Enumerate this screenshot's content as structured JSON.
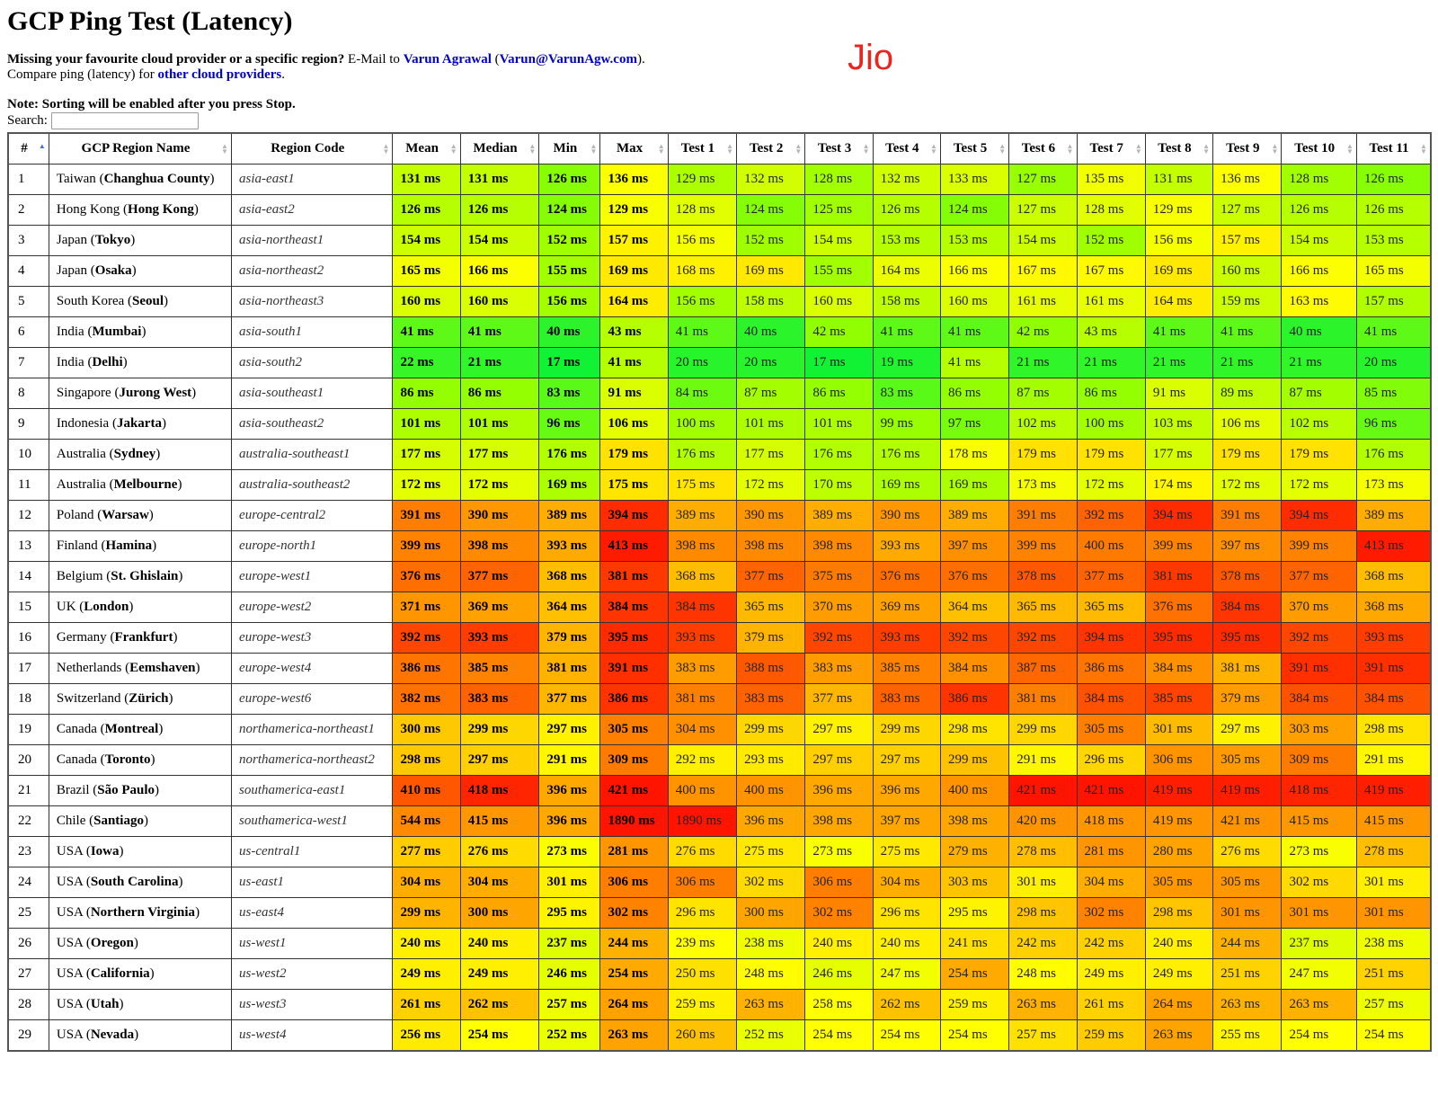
{
  "page": {
    "title": "GCP Ping Test (Latency)",
    "watermark": "Jio",
    "watermark_color": "#e8251f",
    "missing_question": "Missing your favourite cloud provider or a specific region?",
    "email_text": " E-Mail to ",
    "author_name": "Varun Agrawal",
    "open_paren": " (",
    "author_email": "Varun@VarunAgw.com",
    "close_paren": ").",
    "compare_prefix": "Compare ping (latency) for ",
    "compare_link": "other cloud providers",
    "compare_suffix": ".",
    "note": "Note: Sorting will be enabled after you press Stop.",
    "search_label": "Search:",
    "search_value": ""
  },
  "headers": [
    "#",
    "GCP Region Name",
    "Region Code",
    "Mean",
    "Median",
    "Min",
    "Max",
    "Test 1",
    "Test 2",
    "Test 3",
    "Test 4",
    "Test 5",
    "Test 6",
    "Test 7",
    "Test 8",
    "Test 9",
    "Test 10",
    "Test 11"
  ],
  "rows": [
    {
      "n": "1",
      "country": "Taiwan",
      "city": "Changhua County",
      "code": "asia-east1",
      "vals": [
        131,
        131,
        126,
        136,
        129,
        132,
        128,
        132,
        133,
        127,
        135,
        131,
        136,
        128,
        126
      ]
    },
    {
      "n": "2",
      "country": "Hong Kong",
      "city": "Hong Kong",
      "code": "asia-east2",
      "vals": [
        126,
        126,
        124,
        129,
        128,
        124,
        125,
        126,
        124,
        127,
        128,
        129,
        127,
        126,
        126
      ]
    },
    {
      "n": "3",
      "country": "Japan",
      "city": "Tokyo",
      "code": "asia-northeast1",
      "vals": [
        154,
        154,
        152,
        157,
        156,
        152,
        154,
        153,
        153,
        154,
        152,
        156,
        157,
        154,
        153
      ]
    },
    {
      "n": "4",
      "country": "Japan",
      "city": "Osaka",
      "code": "asia-northeast2",
      "vals": [
        165,
        166,
        155,
        169,
        168,
        169,
        155,
        164,
        166,
        167,
        167,
        169,
        160,
        166,
        165
      ]
    },
    {
      "n": "5",
      "country": "South Korea",
      "city": "Seoul",
      "code": "asia-northeast3",
      "vals": [
        160,
        160,
        156,
        164,
        156,
        158,
        160,
        158,
        160,
        161,
        161,
        164,
        159,
        163,
        157
      ]
    },
    {
      "n": "6",
      "country": "India",
      "city": "Mumbai",
      "code": "asia-south1",
      "vals": [
        41,
        41,
        40,
        43,
        41,
        40,
        42,
        41,
        41,
        42,
        43,
        41,
        41,
        40,
        41
      ]
    },
    {
      "n": "7",
      "country": "India",
      "city": "Delhi",
      "code": "asia-south2",
      "vals": [
        22,
        21,
        17,
        41,
        20,
        20,
        17,
        19,
        41,
        21,
        21,
        21,
        21,
        21,
        20
      ]
    },
    {
      "n": "8",
      "country": "Singapore",
      "city": "Jurong West",
      "code": "asia-southeast1",
      "vals": [
        86,
        86,
        83,
        91,
        84,
        87,
        86,
        83,
        86,
        87,
        86,
        91,
        89,
        87,
        85
      ]
    },
    {
      "n": "9",
      "country": "Indonesia",
      "city": "Jakarta",
      "code": "asia-southeast2",
      "vals": [
        101,
        101,
        96,
        106,
        100,
        101,
        101,
        99,
        97,
        102,
        100,
        103,
        106,
        102,
        96
      ]
    },
    {
      "n": "10",
      "country": "Australia",
      "city": "Sydney",
      "code": "australia-southeast1",
      "vals": [
        177,
        177,
        176,
        179,
        176,
        177,
        176,
        176,
        178,
        179,
        179,
        177,
        179,
        179,
        176
      ]
    },
    {
      "n": "11",
      "country": "Australia",
      "city": "Melbourne",
      "code": "australia-southeast2",
      "vals": [
        172,
        172,
        169,
        175,
        175,
        172,
        170,
        169,
        169,
        173,
        172,
        174,
        172,
        172,
        173
      ]
    },
    {
      "n": "12",
      "country": "Poland",
      "city": "Warsaw",
      "code": "europe-central2",
      "vals": [
        391,
        390,
        389,
        394,
        389,
        390,
        389,
        390,
        389,
        391,
        392,
        394,
        391,
        394,
        389
      ]
    },
    {
      "n": "13",
      "country": "Finland",
      "city": "Hamina",
      "code": "europe-north1",
      "vals": [
        399,
        398,
        393,
        413,
        398,
        398,
        398,
        393,
        397,
        399,
        400,
        399,
        397,
        399,
        413
      ]
    },
    {
      "n": "14",
      "country": "Belgium",
      "city": "St. Ghislain",
      "code": "europe-west1",
      "vals": [
        376,
        377,
        368,
        381,
        368,
        377,
        375,
        376,
        376,
        378,
        377,
        381,
        378,
        377,
        368
      ]
    },
    {
      "n": "15",
      "country": "UK",
      "city": "London",
      "code": "europe-west2",
      "vals": [
        371,
        369,
        364,
        384,
        384,
        365,
        370,
        369,
        364,
        365,
        365,
        376,
        384,
        370,
        368
      ]
    },
    {
      "n": "16",
      "country": "Germany",
      "city": "Frankfurt",
      "code": "europe-west3",
      "vals": [
        392,
        393,
        379,
        395,
        393,
        379,
        392,
        393,
        392,
        392,
        394,
        395,
        395,
        392,
        393
      ]
    },
    {
      "n": "17",
      "country": "Netherlands",
      "city": "Eemshaven",
      "code": "europe-west4",
      "vals": [
        386,
        385,
        381,
        391,
        383,
        388,
        383,
        385,
        384,
        387,
        386,
        384,
        381,
        391,
        391
      ]
    },
    {
      "n": "18",
      "country": "Switzerland",
      "city": "Zürich",
      "code": "europe-west6",
      "vals": [
        382,
        383,
        377,
        386,
        381,
        383,
        377,
        383,
        386,
        381,
        384,
        385,
        379,
        384,
        384
      ]
    },
    {
      "n": "19",
      "country": "Canada",
      "city": "Montreal",
      "code": "northamerica-northeast1",
      "vals": [
        300,
        299,
        297,
        305,
        304,
        299,
        297,
        299,
        298,
        299,
        305,
        301,
        297,
        303,
        298
      ]
    },
    {
      "n": "20",
      "country": "Canada",
      "city": "Toronto",
      "code": "northamerica-northeast2",
      "vals": [
        298,
        297,
        291,
        309,
        292,
        293,
        297,
        297,
        299,
        291,
        296,
        306,
        305,
        309,
        291
      ]
    },
    {
      "n": "21",
      "country": "Brazil",
      "city": "São Paulo",
      "code": "southamerica-east1",
      "vals": [
        410,
        418,
        396,
        421,
        400,
        400,
        396,
        396,
        400,
        421,
        421,
        419,
        419,
        418,
        419
      ]
    },
    {
      "n": "22",
      "country": "Chile",
      "city": "Santiago",
      "code": "southamerica-west1",
      "vals": [
        544,
        415,
        396,
        1890,
        1890,
        396,
        398,
        397,
        398,
        420,
        418,
        419,
        421,
        415,
        415
      ]
    },
    {
      "n": "23",
      "country": "USA",
      "city": "Iowa",
      "code": "us-central1",
      "vals": [
        277,
        276,
        273,
        281,
        276,
        275,
        273,
        275,
        279,
        278,
        281,
        280,
        276,
        273,
        278
      ]
    },
    {
      "n": "24",
      "country": "USA",
      "city": "South Carolina",
      "code": "us-east1",
      "vals": [
        304,
        304,
        301,
        306,
        306,
        302,
        306,
        304,
        303,
        301,
        304,
        305,
        305,
        302,
        301
      ]
    },
    {
      "n": "25",
      "country": "USA",
      "city": "Northern Virginia",
      "code": "us-east4",
      "vals": [
        299,
        300,
        295,
        302,
        296,
        300,
        302,
        296,
        295,
        298,
        302,
        298,
        301,
        301,
        301
      ]
    },
    {
      "n": "26",
      "country": "USA",
      "city": "Oregon",
      "code": "us-west1",
      "vals": [
        240,
        240,
        237,
        244,
        239,
        238,
        240,
        240,
        241,
        242,
        242,
        240,
        244,
        237,
        238
      ]
    },
    {
      "n": "27",
      "country": "USA",
      "city": "California",
      "code": "us-west2",
      "vals": [
        249,
        249,
        246,
        254,
        250,
        248,
        246,
        247,
        254,
        248,
        249,
        249,
        251,
        247,
        251
      ]
    },
    {
      "n": "28",
      "country": "USA",
      "city": "Utah",
      "code": "us-west3",
      "vals": [
        261,
        262,
        257,
        264,
        259,
        263,
        258,
        262,
        259,
        263,
        261,
        264,
        263,
        263,
        257
      ]
    },
    {
      "n": "29",
      "country": "USA",
      "city": "Nevada",
      "code": "us-west4",
      "vals": [
        256,
        254,
        252,
        263,
        260,
        252,
        254,
        254,
        254,
        257,
        259,
        263,
        255,
        254,
        254
      ]
    }
  ],
  "unit": "ms",
  "sort": {
    "active_column": "#",
    "direction": "ascending"
  },
  "colors": {
    "link": "#0000cc",
    "border": "#333333",
    "sort_active": "#4a6fd6",
    "sort_inactive": "#b5b5b5"
  }
}
